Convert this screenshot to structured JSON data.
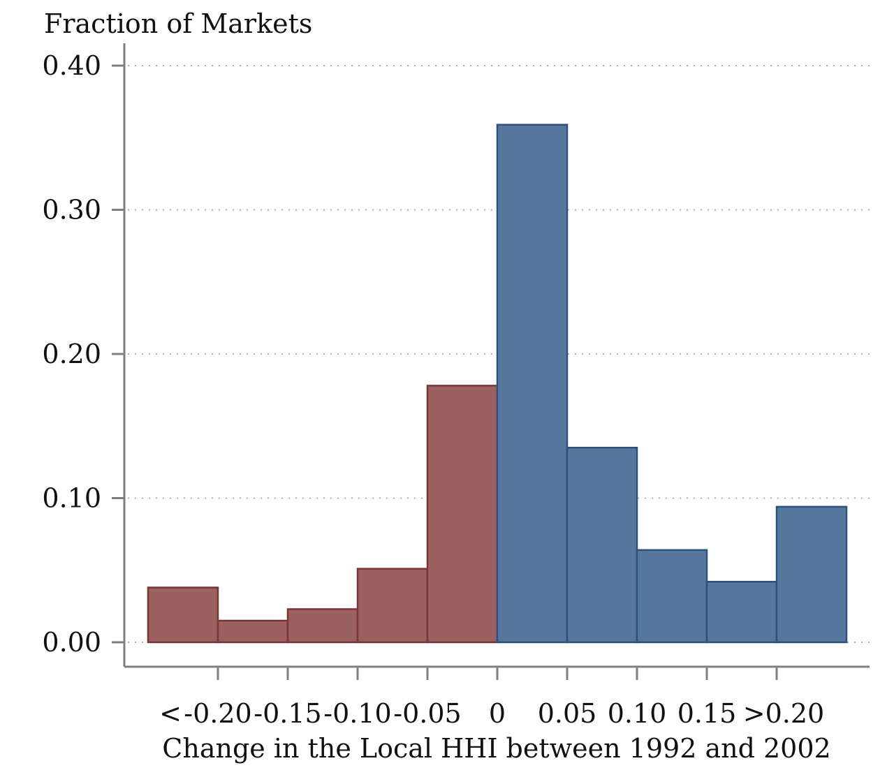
{
  "chart_data": {
    "type": "bar",
    "ylabel": "Fraction of Markets",
    "xlabel": "Change in the Local HHI between 1992 and 2002",
    "ylim": [
      0,
      0.42
    ],
    "yticks": [
      {
        "value": 0.0,
        "label": "0.00"
      },
      {
        "value": 0.1,
        "label": "0.10"
      },
      {
        "value": 0.2,
        "label": "0.20"
      },
      {
        "value": 0.3,
        "label": "0.30"
      },
      {
        "value": 0.4,
        "label": "0.40"
      }
    ],
    "grid": true,
    "bins": [
      {
        "lo": -0.25,
        "hi": -0.2,
        "value": 0.038,
        "group": "negative"
      },
      {
        "lo": -0.2,
        "hi": -0.15,
        "value": 0.015,
        "group": "negative"
      },
      {
        "lo": -0.15,
        "hi": -0.1,
        "value": 0.023,
        "group": "negative"
      },
      {
        "lo": -0.1,
        "hi": -0.05,
        "value": 0.051,
        "group": "negative"
      },
      {
        "lo": -0.05,
        "hi": 0.0,
        "value": 0.178,
        "group": "negative"
      },
      {
        "lo": 0.0,
        "hi": 0.05,
        "value": 0.359,
        "group": "positive"
      },
      {
        "lo": 0.05,
        "hi": 0.1,
        "value": 0.135,
        "group": "positive"
      },
      {
        "lo": 0.1,
        "hi": 0.15,
        "value": 0.064,
        "group": "positive"
      },
      {
        "lo": 0.15,
        "hi": 0.2,
        "value": 0.042,
        "group": "positive"
      },
      {
        "lo": 0.2,
        "hi": 0.25,
        "value": 0.094,
        "group": "positive"
      }
    ],
    "xticks": [
      {
        "value": -0.2,
        "label": "-0.20"
      },
      {
        "value": -0.15,
        "label": "-0.15"
      },
      {
        "value": -0.1,
        "label": "-0.10"
      },
      {
        "value": -0.05,
        "label": "-0.05"
      },
      {
        "value": 0.0,
        "label": "0"
      },
      {
        "value": 0.05,
        "label": "0.05"
      },
      {
        "value": 0.1,
        "label": "0.10"
      },
      {
        "value": 0.15,
        "label": "0.15"
      },
      {
        "value": 0.2,
        "label": ""
      }
    ],
    "xtick_extra_labels": [
      {
        "value": -0.234,
        "label": "<"
      },
      {
        "value": 0.205,
        "label": ">0.20"
      }
    ],
    "colors": {
      "negative_fill": "#9b6161",
      "negative_stroke": "#7a3535",
      "positive_fill": "#55789c",
      "positive_stroke": "#2f4f7d",
      "axis": "#7f7f7f",
      "grid": "#b0b0b0"
    }
  }
}
